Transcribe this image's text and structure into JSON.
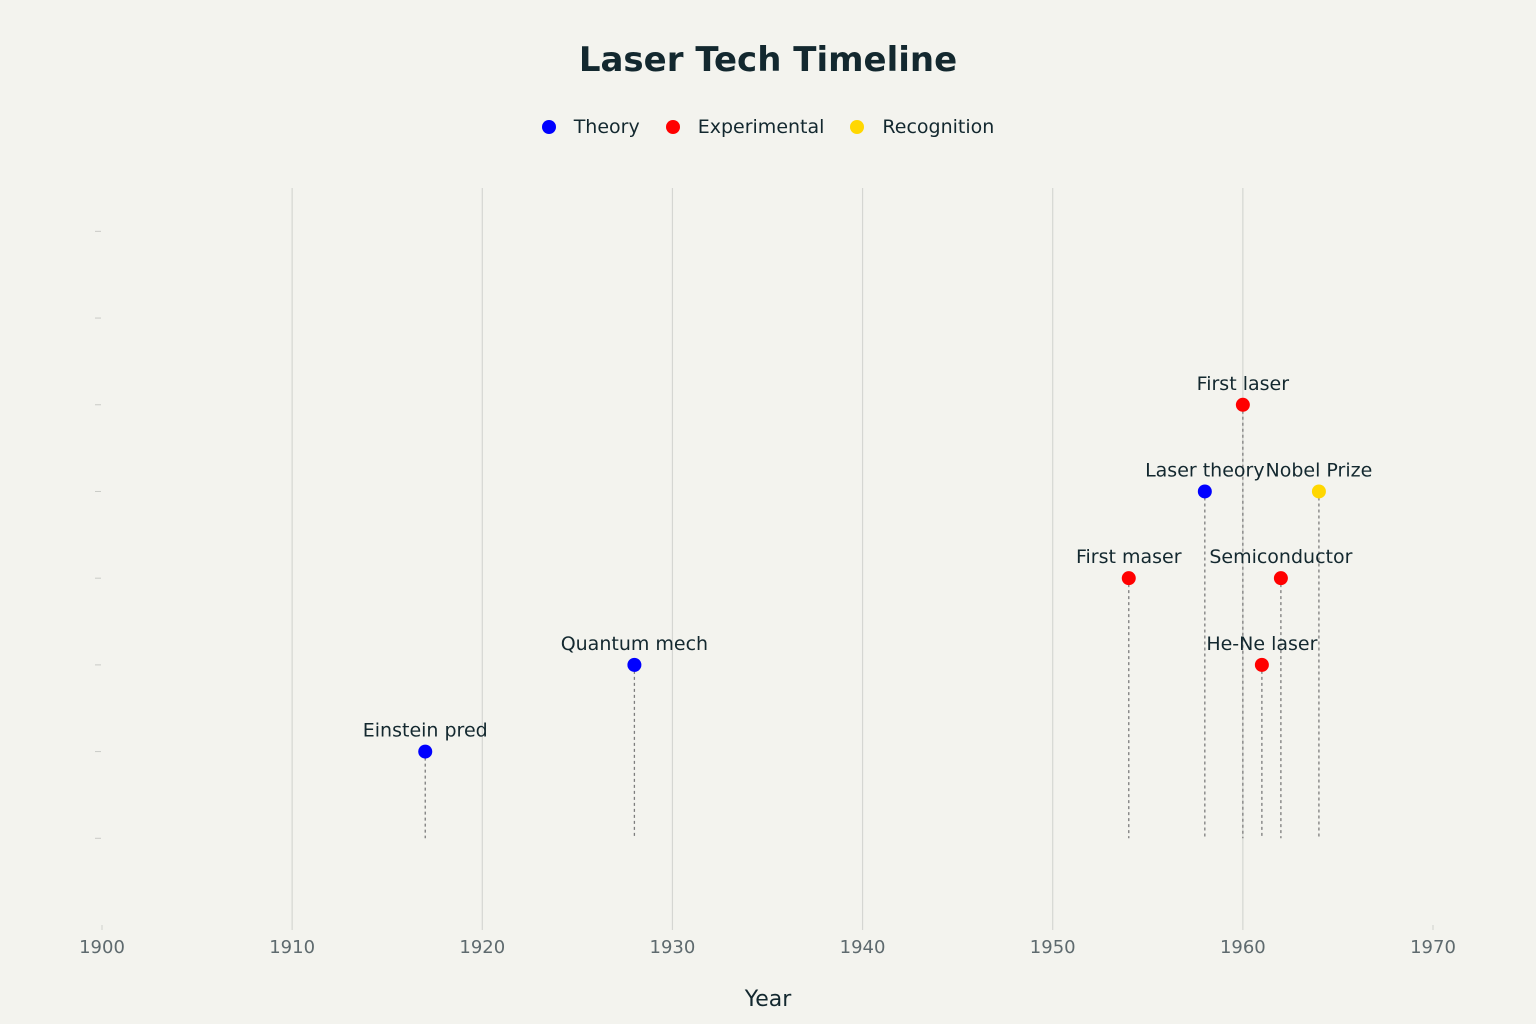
{
  "chart_data": {
    "type": "scatter",
    "title": "Laser Tech Timeline",
    "xlabel": "Year",
    "ylabel": "",
    "xlim": [
      1900,
      1970
    ],
    "x_ticks": [
      1900,
      1910,
      1920,
      1930,
      1940,
      1950,
      1960,
      1970
    ],
    "ylim": [
      0,
      8.5
    ],
    "baseline_y": 1,
    "grid": "vertical",
    "legend_position": "top-center",
    "series": [
      {
        "name": "Theory",
        "color": "#0000ff",
        "points": [
          {
            "x": 1917,
            "y": 2,
            "label": "Einstein pred"
          },
          {
            "x": 1928,
            "y": 3,
            "label": "Quantum mech"
          },
          {
            "x": 1958,
            "y": 5,
            "label": "Laser theory"
          }
        ]
      },
      {
        "name": "Experimental",
        "color": "#ff0000",
        "points": [
          {
            "x": 1954,
            "y": 4,
            "label": "First maser"
          },
          {
            "x": 1960,
            "y": 6,
            "label": "First laser"
          },
          {
            "x": 1961,
            "y": 3,
            "label": "He-Ne laser"
          },
          {
            "x": 1962,
            "y": 4,
            "label": "Semiconductor"
          }
        ]
      },
      {
        "name": "Recognition",
        "color": "#ffd700",
        "points": [
          {
            "x": 1964,
            "y": 5,
            "label": "Nobel Prize"
          }
        ]
      }
    ]
  }
}
